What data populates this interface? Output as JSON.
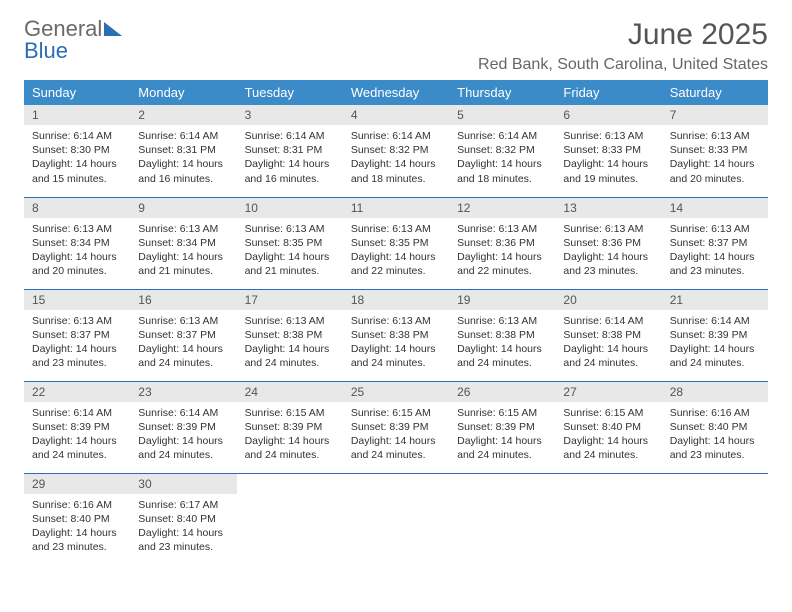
{
  "brand": {
    "word1": "General",
    "word2": "Blue"
  },
  "title": "June 2025",
  "location": "Red Bank, South Carolina, United States",
  "colors": {
    "header_bg": "#3b8bc8",
    "header_text": "#ffffff",
    "daynum_bg": "#e8e8e8",
    "rule": "#2a6fb5",
    "body_text": "#333333",
    "title_text": "#555555",
    "brand_gray": "#6a6a6a",
    "brand_blue": "#2a6fb5"
  },
  "weekdays": [
    "Sunday",
    "Monday",
    "Tuesday",
    "Wednesday",
    "Thursday",
    "Friday",
    "Saturday"
  ],
  "weeks": [
    [
      {
        "n": "1",
        "sr": "6:14 AM",
        "ss": "8:30 PM",
        "dl": "14 hours and 15 minutes."
      },
      {
        "n": "2",
        "sr": "6:14 AM",
        "ss": "8:31 PM",
        "dl": "14 hours and 16 minutes."
      },
      {
        "n": "3",
        "sr": "6:14 AM",
        "ss": "8:31 PM",
        "dl": "14 hours and 16 minutes."
      },
      {
        "n": "4",
        "sr": "6:14 AM",
        "ss": "8:32 PM",
        "dl": "14 hours and 18 minutes."
      },
      {
        "n": "5",
        "sr": "6:14 AM",
        "ss": "8:32 PM",
        "dl": "14 hours and 18 minutes."
      },
      {
        "n": "6",
        "sr": "6:13 AM",
        "ss": "8:33 PM",
        "dl": "14 hours and 19 minutes."
      },
      {
        "n": "7",
        "sr": "6:13 AM",
        "ss": "8:33 PM",
        "dl": "14 hours and 20 minutes."
      }
    ],
    [
      {
        "n": "8",
        "sr": "6:13 AM",
        "ss": "8:34 PM",
        "dl": "14 hours and 20 minutes."
      },
      {
        "n": "9",
        "sr": "6:13 AM",
        "ss": "8:34 PM",
        "dl": "14 hours and 21 minutes."
      },
      {
        "n": "10",
        "sr": "6:13 AM",
        "ss": "8:35 PM",
        "dl": "14 hours and 21 minutes."
      },
      {
        "n": "11",
        "sr": "6:13 AM",
        "ss": "8:35 PM",
        "dl": "14 hours and 22 minutes."
      },
      {
        "n": "12",
        "sr": "6:13 AM",
        "ss": "8:36 PM",
        "dl": "14 hours and 22 minutes."
      },
      {
        "n": "13",
        "sr": "6:13 AM",
        "ss": "8:36 PM",
        "dl": "14 hours and 23 minutes."
      },
      {
        "n": "14",
        "sr": "6:13 AM",
        "ss": "8:37 PM",
        "dl": "14 hours and 23 minutes."
      }
    ],
    [
      {
        "n": "15",
        "sr": "6:13 AM",
        "ss": "8:37 PM",
        "dl": "14 hours and 23 minutes."
      },
      {
        "n": "16",
        "sr": "6:13 AM",
        "ss": "8:37 PM",
        "dl": "14 hours and 24 minutes."
      },
      {
        "n": "17",
        "sr": "6:13 AM",
        "ss": "8:38 PM",
        "dl": "14 hours and 24 minutes."
      },
      {
        "n": "18",
        "sr": "6:13 AM",
        "ss": "8:38 PM",
        "dl": "14 hours and 24 minutes."
      },
      {
        "n": "19",
        "sr": "6:13 AM",
        "ss": "8:38 PM",
        "dl": "14 hours and 24 minutes."
      },
      {
        "n": "20",
        "sr": "6:14 AM",
        "ss": "8:38 PM",
        "dl": "14 hours and 24 minutes."
      },
      {
        "n": "21",
        "sr": "6:14 AM",
        "ss": "8:39 PM",
        "dl": "14 hours and 24 minutes."
      }
    ],
    [
      {
        "n": "22",
        "sr": "6:14 AM",
        "ss": "8:39 PM",
        "dl": "14 hours and 24 minutes."
      },
      {
        "n": "23",
        "sr": "6:14 AM",
        "ss": "8:39 PM",
        "dl": "14 hours and 24 minutes."
      },
      {
        "n": "24",
        "sr": "6:15 AM",
        "ss": "8:39 PM",
        "dl": "14 hours and 24 minutes."
      },
      {
        "n": "25",
        "sr": "6:15 AM",
        "ss": "8:39 PM",
        "dl": "14 hours and 24 minutes."
      },
      {
        "n": "26",
        "sr": "6:15 AM",
        "ss": "8:39 PM",
        "dl": "14 hours and 24 minutes."
      },
      {
        "n": "27",
        "sr": "6:15 AM",
        "ss": "8:40 PM",
        "dl": "14 hours and 24 minutes."
      },
      {
        "n": "28",
        "sr": "6:16 AM",
        "ss": "8:40 PM",
        "dl": "14 hours and 23 minutes."
      }
    ],
    [
      {
        "n": "29",
        "sr": "6:16 AM",
        "ss": "8:40 PM",
        "dl": "14 hours and 23 minutes."
      },
      {
        "n": "30",
        "sr": "6:17 AM",
        "ss": "8:40 PM",
        "dl": "14 hours and 23 minutes."
      },
      null,
      null,
      null,
      null,
      null
    ]
  ],
  "labels": {
    "sunrise": "Sunrise: ",
    "sunset": "Sunset: ",
    "daylight": "Daylight: "
  }
}
